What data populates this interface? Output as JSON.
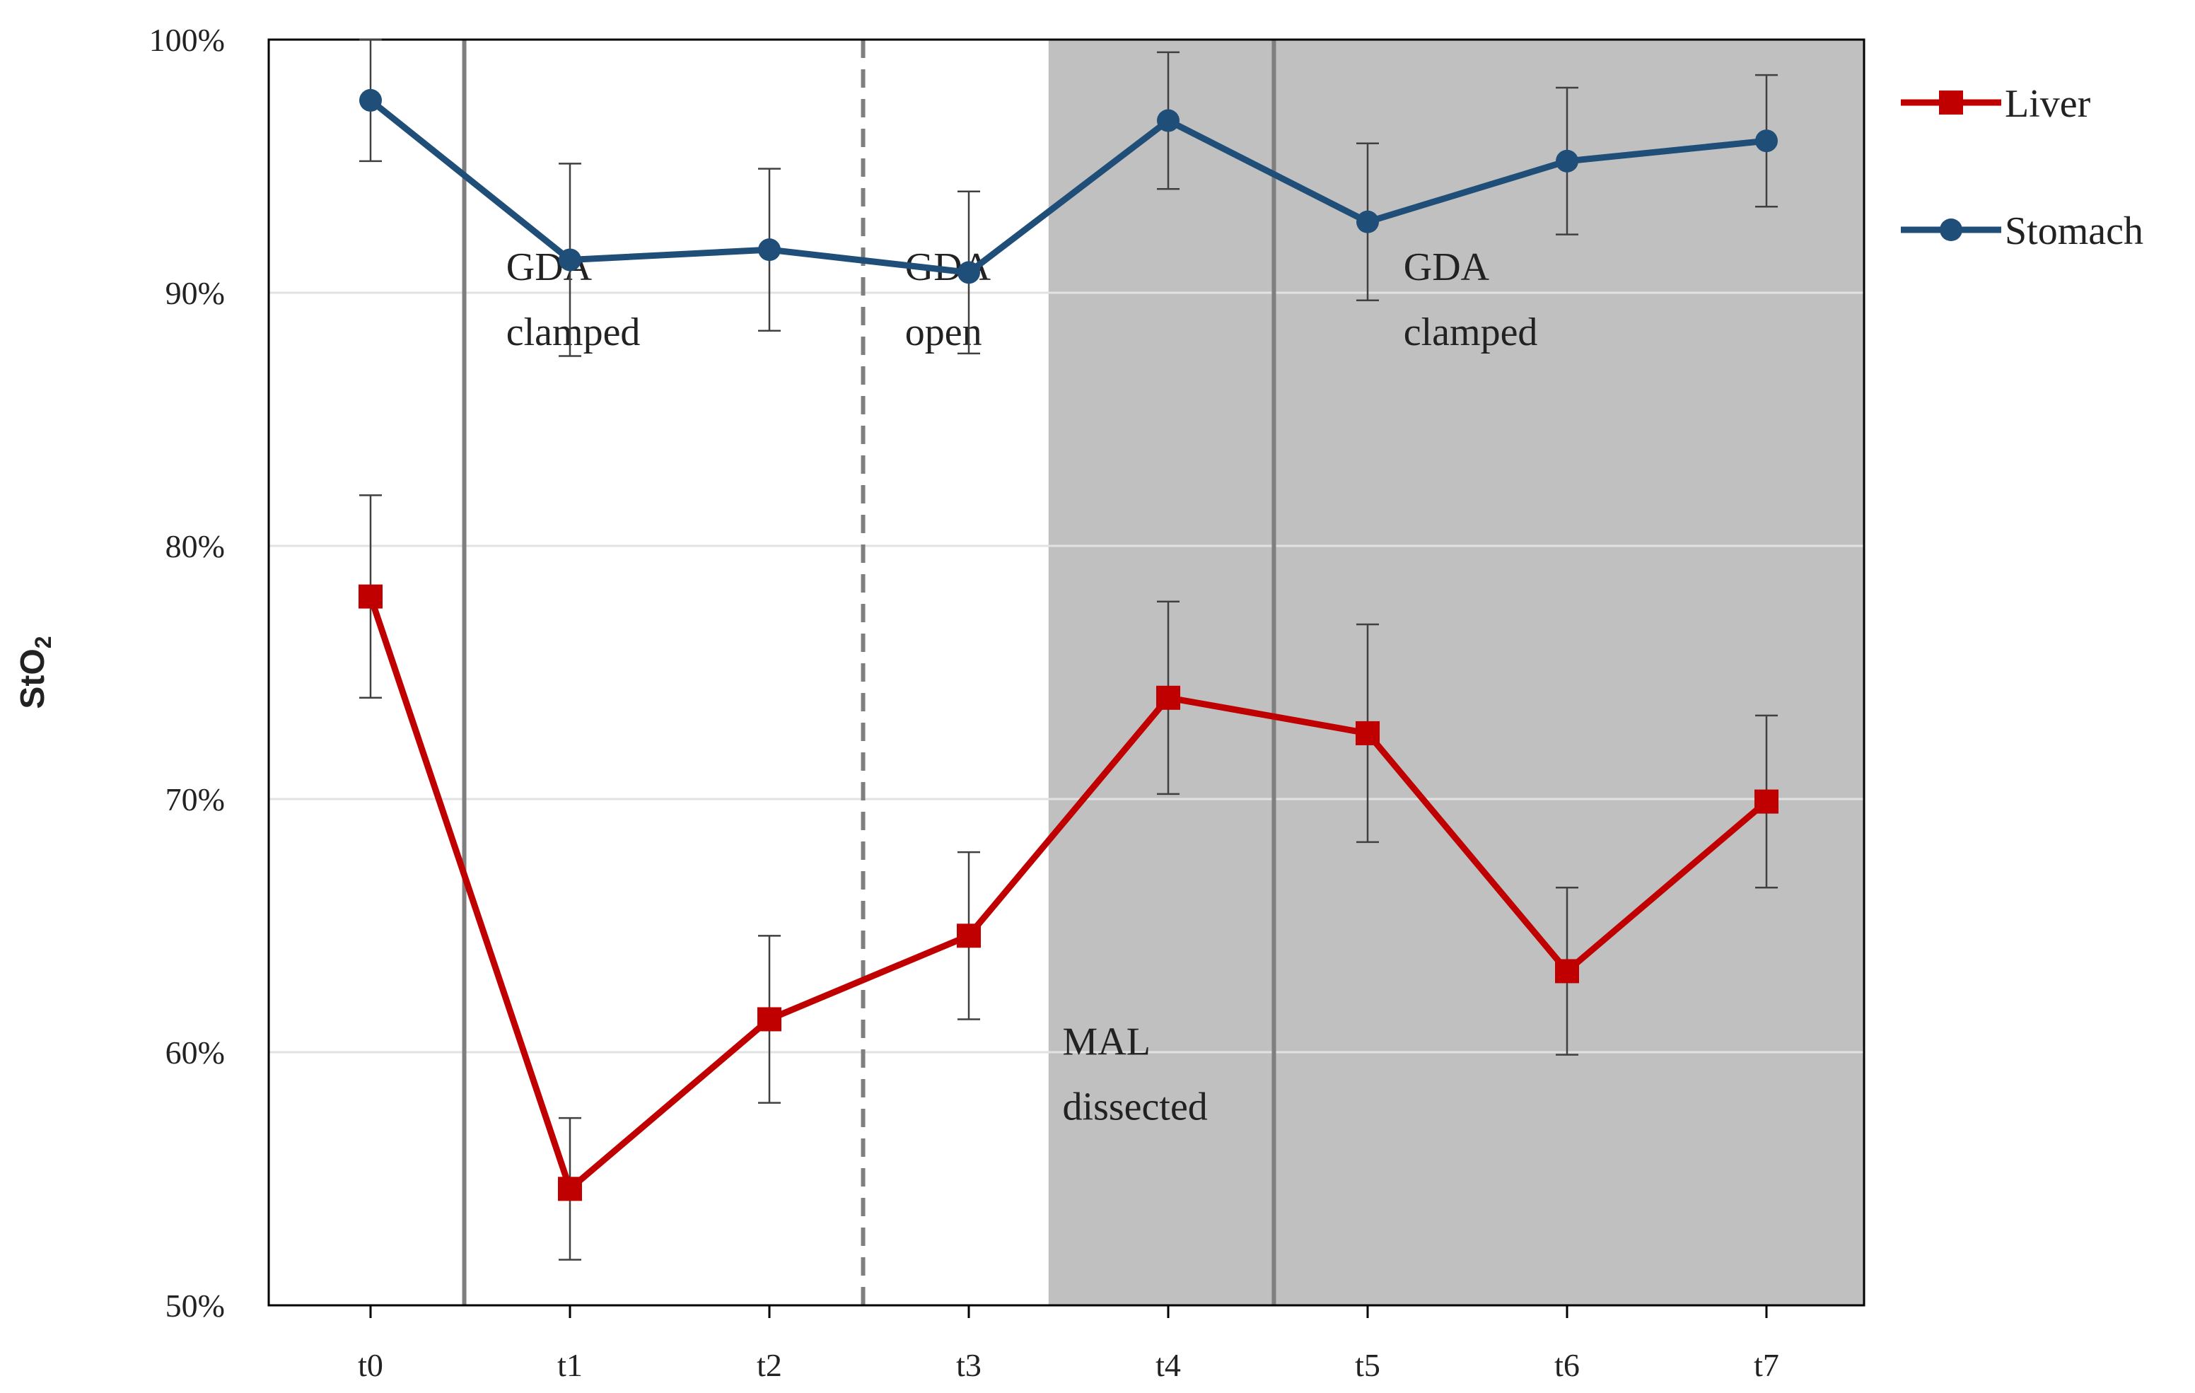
{
  "chart_data": {
    "type": "line",
    "title": "",
    "xlabel": "",
    "ylabel": "StO",
    "ylabel_subscript": "2",
    "categories": [
      "t0",
      "t1",
      "t2",
      "t3",
      "t4",
      "t5",
      "t6",
      "t7"
    ],
    "ylim": [
      50,
      100
    ],
    "yticks": [
      50,
      60,
      70,
      80,
      90,
      100
    ],
    "ytick_labels": [
      "50%",
      "60%",
      "70%",
      "80%",
      "90%",
      "100%"
    ],
    "grid": "horizontal",
    "shaded_region": {
      "from": 3.4,
      "to": 7.5,
      "color": "#c0c0c0"
    },
    "vertical_lines": [
      {
        "x": 0.47,
        "style": "solid"
      },
      {
        "x": 2.47,
        "style": "dashed"
      },
      {
        "x": 4.53,
        "style": "solid"
      }
    ],
    "annotations": [
      {
        "lines": [
          "GDA",
          "clamped"
        ],
        "x": 0.68,
        "y": 90.5
      },
      {
        "lines": [
          "GDA",
          "open"
        ],
        "x": 2.68,
        "y": 90.5
      },
      {
        "lines": [
          "GDA",
          "clamped"
        ],
        "x": 5.18,
        "y": 90.5
      },
      {
        "lines": [
          "MAL",
          "dissected"
        ],
        "x": 3.47,
        "y": 59.9
      }
    ],
    "series": [
      {
        "name": "Liver",
        "color": "#c00000",
        "marker": "square",
        "values": [
          78.0,
          54.6,
          61.3,
          64.6,
          74.0,
          72.6,
          63.2,
          69.9
        ],
        "error": [
          4.0,
          2.8,
          3.3,
          3.3,
          3.8,
          4.3,
          3.3,
          3.4
        ]
      },
      {
        "name": "Stomach",
        "color": "#1f4e79",
        "marker": "circle",
        "values": [
          97.6,
          91.3,
          91.7,
          90.8,
          96.8,
          92.8,
          95.2,
          96.0
        ],
        "error": [
          2.4,
          3.8,
          3.2,
          3.2,
          2.7,
          3.1,
          2.9,
          2.6
        ]
      }
    ],
    "legend_position": "right-top"
  }
}
